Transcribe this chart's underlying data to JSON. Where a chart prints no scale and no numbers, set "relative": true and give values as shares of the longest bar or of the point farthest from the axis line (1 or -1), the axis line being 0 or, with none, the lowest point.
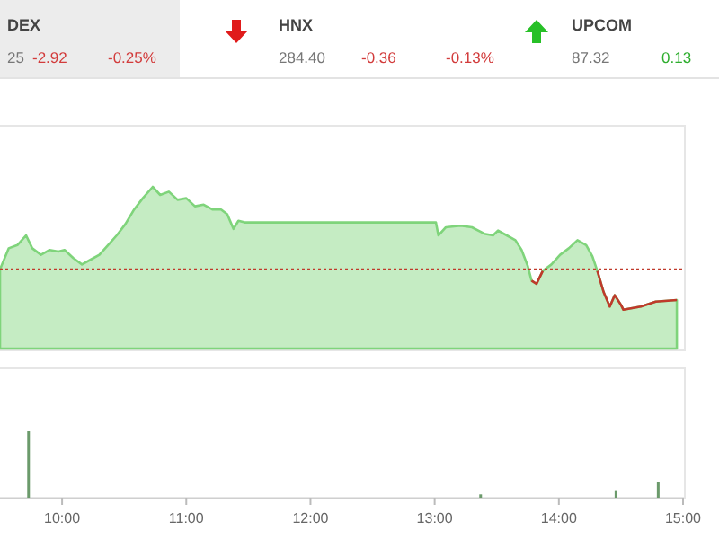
{
  "chart_data": [
    {
      "type": "other",
      "annotations": [
        "DEX",
        "25",
        "-2.92",
        "-0.25%",
        "HNX",
        "284.40",
        "-0.36",
        "-0.13%",
        "UPCOM",
        "87.32",
        "0.13"
      ]
    },
    {
      "type": "area",
      "relative": true,
      "xlim": [
        9.5,
        15.0
      ],
      "tick_labels": false,
      "x": [
        9.5,
        9.57,
        9.64,
        9.71,
        9.76,
        9.83,
        9.9,
        9.97,
        10.02,
        10.09,
        10.16,
        10.23,
        10.3,
        10.37,
        10.44,
        10.51,
        10.58,
        10.65,
        10.73,
        10.79,
        10.86,
        10.93,
        11.0,
        11.07,
        11.14,
        11.21,
        11.28,
        11.33,
        11.38,
        11.42,
        11.47,
        11.85,
        12.32,
        12.79,
        13.01,
        13.03,
        13.09,
        13.21,
        13.3,
        13.4,
        13.47,
        13.51,
        13.58,
        13.65,
        13.7,
        13.75,
        13.78,
        13.82,
        13.87,
        13.94,
        14.01,
        14.08,
        14.15,
        14.22,
        14.27,
        14.31,
        14.36,
        14.41,
        14.45,
        14.5,
        14.52,
        14.59,
        14.66,
        14.78,
        14.95
      ],
      "series": [
        {
          "color": "#7fd47b",
          "values": [
            0.49,
            0.62,
            0.64,
            0.7,
            0.62,
            0.58,
            0.61,
            0.6,
            0.61,
            0.56,
            0.52,
            0.55,
            0.58,
            0.64,
            0.7,
            0.77,
            0.86,
            0.93,
            1.0,
            0.95,
            0.97,
            0.92,
            0.93,
            0.88,
            0.89,
            0.86,
            0.86,
            0.83,
            0.74,
            0.79,
            0.78,
            0.78,
            0.78,
            0.78,
            0.78,
            0.7,
            0.75,
            0.76,
            0.75,
            0.71,
            0.7,
            0.73,
            0.7,
            0.67,
            0.61,
            0.51,
            0.42,
            0.4,
            0.48,
            0.52,
            0.58,
            0.62,
            0.67,
            0.64,
            0.57,
            0.48,
            0.35,
            0.26,
            0.33,
            0.27,
            0.24,
            0.25,
            0.26,
            0.29,
            0.3
          ]
        },
        {
          "type": "line",
          "color": "#c0392b",
          "values": [
            null,
            null,
            null,
            null,
            null,
            null,
            null,
            null,
            null,
            null,
            null,
            null,
            null,
            null,
            null,
            null,
            null,
            null,
            null,
            null,
            null,
            null,
            null,
            null,
            null,
            null,
            null,
            null,
            null,
            null,
            null,
            null,
            null,
            null,
            null,
            null,
            null,
            null,
            null,
            null,
            null,
            null,
            null,
            null,
            null,
            null,
            0.42,
            0.4,
            0.48,
            null,
            null,
            null,
            null,
            null,
            null,
            0.48,
            0.35,
            0.26,
            0.33,
            0.27,
            0.24,
            0.25,
            0.26,
            0.29,
            0.3
          ]
        }
      ],
      "ref_lines": [
        {
          "axis": "y",
          "value": 0.49,
          "color": "#c0392b",
          "line_style": "dotted"
        }
      ]
    },
    {
      "type": "bar",
      "relative": true,
      "xlim": [
        9.5,
        15.0
      ],
      "tick_labels": "x",
      "xticks": [
        {
          "value": 10,
          "label": "10:00"
        },
        {
          "value": 11,
          "label": "11:00"
        },
        {
          "value": 12,
          "label": "12:00"
        },
        {
          "value": 13,
          "label": "13:00"
        },
        {
          "value": 14,
          "label": "14:00"
        },
        {
          "value": 15,
          "label": "15:00"
        }
      ],
      "x": [
        9.73,
        13.37,
        14.46,
        14.8
      ],
      "values": [
        1,
        0.05,
        0.1,
        0.24
      ],
      "color": "#6b9a6b"
    }
  ]
}
